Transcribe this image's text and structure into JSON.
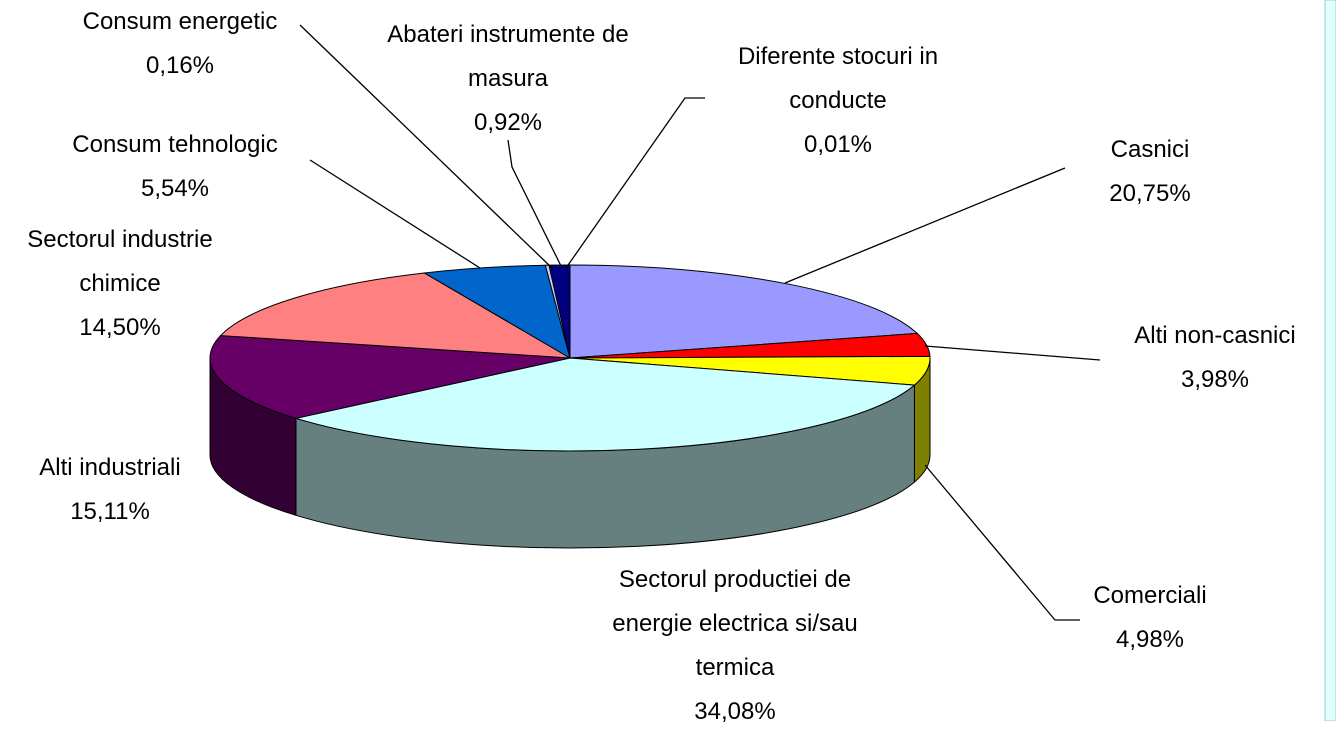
{
  "chart_data": {
    "type": "pie3d",
    "categories": [
      "Casnici",
      "Alti non-casnici",
      "Comerciali",
      "Sectorul productiei de energie electrica si/sau termica",
      "Alti industriali",
      "Sectorul industrie chimice",
      "Consum tehnologic",
      "Consum energetic",
      "Abateri instrumente de masura",
      "Diferente stocuri in conducte"
    ],
    "values": [
      20.75,
      3.98,
      4.98,
      34.08,
      15.11,
      14.5,
      5.54,
      0.16,
      0.92,
      0.01
    ],
    "value_labels": [
      "20,75%",
      "3,98%",
      "4,98%",
      "34,08%",
      "15,11%",
      "14,50%",
      "5,54%",
      "0,16%",
      "0,92%",
      "0,01%"
    ],
    "colors": [
      "#9999ff",
      "#ff0000",
      "#ffff00",
      "#ccffff",
      "#660066",
      "#ff8080",
      "#0066cc",
      "#ccccff",
      "#000080",
      "#00ccff"
    ]
  }
}
